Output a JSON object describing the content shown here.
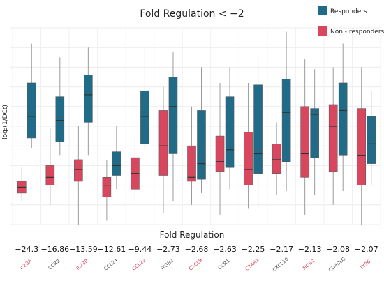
{
  "chart_data": {
    "type": "box",
    "title": "Fold Regulation < −2",
    "ylabel": "log₂(1/DCt)",
    "xlabel": "Fold Regulation",
    "ylim": [
      0,
      1
    ],
    "grid": true,
    "legend_position": "top-right",
    "series": [
      {
        "name": "Responders",
        "color": "#1f6b88"
      },
      {
        "name": "Non - responders",
        "color": "#d9475f"
      }
    ],
    "categories": [
      {
        "gene": "IL23A",
        "fold": "−24.3",
        "non_responders": {
          "min": 0.12,
          "q1": 0.16,
          "median": 0.19,
          "q3": 0.22,
          "max": 0.29
        },
        "responders": {
          "min": 0.39,
          "q1": 0.44,
          "median": 0.55,
          "q3": 0.72,
          "max": 0.92
        }
      },
      {
        "gene": "CCR2",
        "fold": "−16.86",
        "non_responders": {
          "min": 0.1,
          "q1": 0.2,
          "median": 0.24,
          "q3": 0.3,
          "max": 0.49
        },
        "responders": {
          "min": 0.35,
          "q1": 0.42,
          "median": 0.53,
          "q3": 0.65,
          "max": 0.85
        }
      },
      {
        "gene": "IL23R",
        "fold": "−13.59",
        "non_responders": {
          "min": 0.0,
          "q1": 0.22,
          "median": 0.28,
          "q3": 0.33,
          "max": 0.5
        },
        "responders": {
          "min": 0.35,
          "q1": 0.52,
          "median": 0.66,
          "q3": 0.76,
          "max": 0.9
        }
      },
      {
        "gene": "CCL24",
        "fold": "−12.61",
        "non_responders": {
          "min": 0.02,
          "q1": 0.14,
          "median": 0.2,
          "q3": 0.24,
          "max": 0.33
        },
        "responders": {
          "min": 0.18,
          "q1": 0.25,
          "median": 0.3,
          "q3": 0.37,
          "max": 0.5
        }
      },
      {
        "gene": "CCL22",
        "fold": "−9.44",
        "non_responders": {
          "min": 0.12,
          "q1": 0.18,
          "median": 0.26,
          "q3": 0.34,
          "max": 0.46
        },
        "responders": {
          "min": 0.38,
          "q1": 0.41,
          "median": 0.55,
          "q3": 0.68,
          "max": 0.9
        }
      },
      {
        "gene": "ITGB2",
        "fold": "−2.73",
        "non_responders": {
          "min": 0.06,
          "q1": 0.25,
          "median": 0.4,
          "q3": 0.58,
          "max": 0.7
        },
        "responders": {
          "min": 0.12,
          "q1": 0.36,
          "median": 0.6,
          "q3": 0.75,
          "max": 0.88
        }
      },
      {
        "gene": "CXCL9",
        "fold": "−2.68",
        "non_responders": {
          "min": 0.1,
          "q1": 0.22,
          "median": 0.24,
          "q3": 0.4,
          "max": 0.6
        },
        "responders": {
          "min": 0.16,
          "q1": 0.23,
          "median": 0.31,
          "q3": 0.58,
          "max": 0.8
        }
      },
      {
        "gene": "CCR1",
        "fold": "−2.63",
        "non_responders": {
          "min": 0.05,
          "q1": 0.27,
          "median": 0.32,
          "q3": 0.45,
          "max": 0.72
        },
        "responders": {
          "min": 0.18,
          "q1": 0.29,
          "median": 0.38,
          "q3": 0.65,
          "max": 0.8
        }
      },
      {
        "gene": "C3AR1",
        "fold": "−2.25",
        "non_responders": {
          "min": 0.08,
          "q1": 0.2,
          "median": 0.28,
          "q3": 0.47,
          "max": 0.72
        },
        "responders": {
          "min": 0.08,
          "q1": 0.26,
          "median": 0.36,
          "q3": 0.71,
          "max": 0.85
        }
      },
      {
        "gene": "CXCL10",
        "fold": "−2.17",
        "non_responders": {
          "min": 0.15,
          "q1": 0.26,
          "median": 0.33,
          "q3": 0.41,
          "max": 0.52
        },
        "responders": {
          "min": 0.17,
          "q1": 0.32,
          "median": 0.57,
          "q3": 0.74,
          "max": 0.98
        }
      },
      {
        "gene": "NOS2",
        "fold": "−2.13",
        "non_responders": {
          "min": 0.05,
          "q1": 0.24,
          "median": 0.36,
          "q3": 0.6,
          "max": 0.84
        },
        "responders": {
          "min": 0.15,
          "q1": 0.34,
          "median": 0.56,
          "q3": 0.59,
          "max": 0.79
        }
      },
      {
        "gene": "CD40LG",
        "fold": "−2.08",
        "non_responders": {
          "min": 0.1,
          "q1": 0.27,
          "median": 0.5,
          "q3": 0.61,
          "max": 0.8
        },
        "responders": {
          "min": 0.17,
          "q1": 0.35,
          "median": 0.58,
          "q3": 0.72,
          "max": 0.92
        }
      },
      {
        "gene": "LY96",
        "fold": "−2.07",
        "non_responders": {
          "min": 0.0,
          "q1": 0.2,
          "median": 0.35,
          "q3": 0.59,
          "max": 0.8
        },
        "responders": {
          "min": 0.2,
          "q1": 0.31,
          "median": 0.41,
          "q3": 0.55,
          "max": 0.68
        }
      }
    ]
  }
}
